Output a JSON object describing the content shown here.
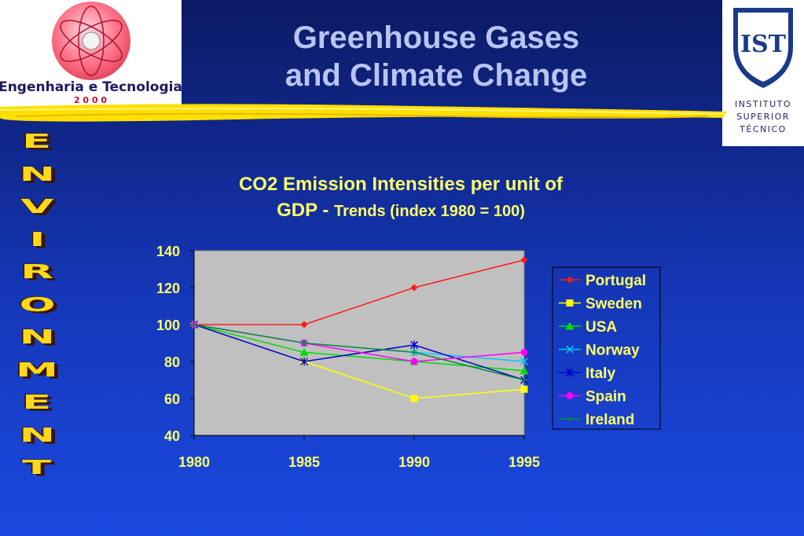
{
  "header": {
    "title_line1": "Greenhouse Gases",
    "title_line2": "and Climate Change",
    "left_logo_text": "Engenharia e Tecnologia",
    "left_logo_year": "2 0 0 0",
    "right_logo_mark": "IST",
    "right_logo_lines": [
      "INSTITUTO",
      "SUPERIOR",
      "TÉCNICO"
    ]
  },
  "side_word": [
    "E",
    "N",
    "V",
    "I",
    "R",
    "O",
    "N",
    "M",
    "E",
    "N",
    "T"
  ],
  "colors": {
    "background_top": "#0b1a63",
    "background_bottom": "#1a49e0",
    "title": "#b8c4f4",
    "chart_title": "#ffff66",
    "side_word": "#ffd81a",
    "plot_area": "#c0c0c0",
    "brush": "#ffe000"
  },
  "chart_data": {
    "type": "line",
    "title_main": "CO2 Emission Intensities per unit of",
    "title_line2_prefix": "GDP - ",
    "title_line2_suffix": "Trends (index 1980 = 100)",
    "x": [
      1980,
      1985,
      1990,
      1995
    ],
    "ylim": [
      40,
      140
    ],
    "yticks": [
      40,
      60,
      80,
      100,
      120,
      140
    ],
    "grid": false,
    "legend_position": "right",
    "series": [
      {
        "name": "Portugal",
        "color": "#ff1a1a",
        "marker": "diamond",
        "values": [
          100,
          100,
          120,
          135
        ]
      },
      {
        "name": "Sweden",
        "color": "#ffff00",
        "marker": "square",
        "values": [
          100,
          80,
          60,
          65
        ]
      },
      {
        "name": "USA",
        "color": "#00dd00",
        "marker": "triangle",
        "values": [
          100,
          85,
          80,
          75
        ]
      },
      {
        "name": "Norway",
        "color": "#00c8ff",
        "marker": "x",
        "values": [
          100,
          90,
          85,
          80
        ]
      },
      {
        "name": "Italy",
        "color": "#0000cc",
        "marker": "star",
        "values": [
          100,
          80,
          89,
          70
        ]
      },
      {
        "name": "Spain",
        "color": "#ff00ff",
        "marker": "circle",
        "values": [
          100,
          90,
          80,
          85
        ]
      },
      {
        "name": "Ireland",
        "color": "#0d8a3a",
        "marker": "plus",
        "values": [
          100,
          90,
          85,
          70
        ]
      }
    ]
  }
}
